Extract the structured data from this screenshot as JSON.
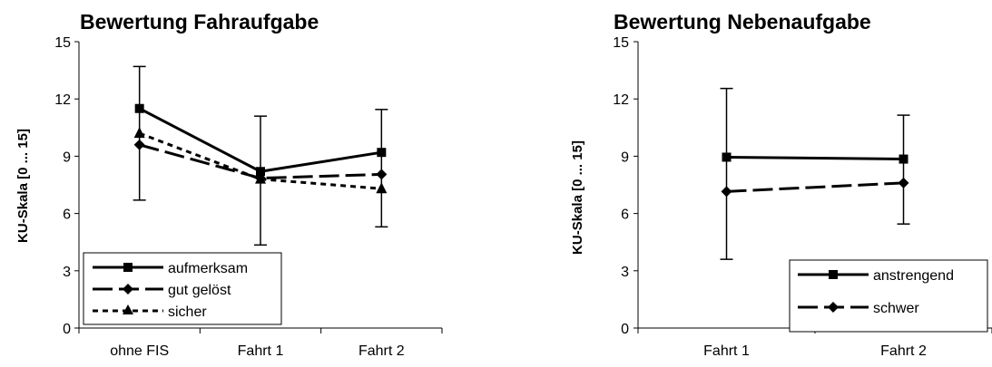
{
  "chart_data": [
    {
      "type": "line",
      "title": "Bewertung Fahraufgabe",
      "xlabel": "",
      "ylabel": "KU-Skala [0 ... 15]",
      "ylim": [
        0,
        15
      ],
      "yticks": [
        "0",
        "3",
        "6",
        "9",
        "12",
        "15"
      ],
      "categories": [
        "ohne FIS",
        "Fahrt 1",
        "Fahrt 2"
      ],
      "legend": "bottom-left",
      "grid": false,
      "error_bars": [
        {
          "category": "ohne FIS",
          "low": 6.7,
          "high": 13.7
        },
        {
          "category": "Fahrt 1",
          "low": 4.35,
          "high": 11.1
        },
        {
          "category": "Fahrt 2",
          "low": 5.3,
          "high": 11.45
        }
      ],
      "series": [
        {
          "name": "aufmerksam",
          "values": [
            11.5,
            8.2,
            9.2
          ],
          "marker": "square",
          "dash": "solid"
        },
        {
          "name": "gut gelöst",
          "values": [
            9.6,
            7.85,
            8.05
          ],
          "marker": "diamond",
          "dash": "longdash"
        },
        {
          "name": "sicher",
          "values": [
            10.2,
            7.8,
            7.3
          ],
          "marker": "triangle",
          "dash": "dotted"
        }
      ]
    },
    {
      "type": "line",
      "title": "Bewertung Nebenaufgabe",
      "xlabel": "",
      "ylabel": "KU-Skala [0 ... 15]",
      "ylim": [
        0,
        15
      ],
      "yticks": [
        "0",
        "3",
        "6",
        "9",
        "12",
        "15"
      ],
      "categories": [
        "Fahrt 1",
        "Fahrt 2"
      ],
      "legend": "bottom-right",
      "grid": false,
      "error_bars": [
        {
          "category": "Fahrt 1",
          "low": 3.6,
          "high": 12.55
        },
        {
          "category": "Fahrt 2",
          "low": 5.45,
          "high": 11.15
        }
      ],
      "series": [
        {
          "name": "anstrengend",
          "values": [
            8.95,
            8.85
          ],
          "marker": "square",
          "dash": "solid"
        },
        {
          "name": "schwer",
          "values": [
            7.15,
            7.6
          ],
          "marker": "diamond",
          "dash": "longdash"
        }
      ]
    }
  ]
}
